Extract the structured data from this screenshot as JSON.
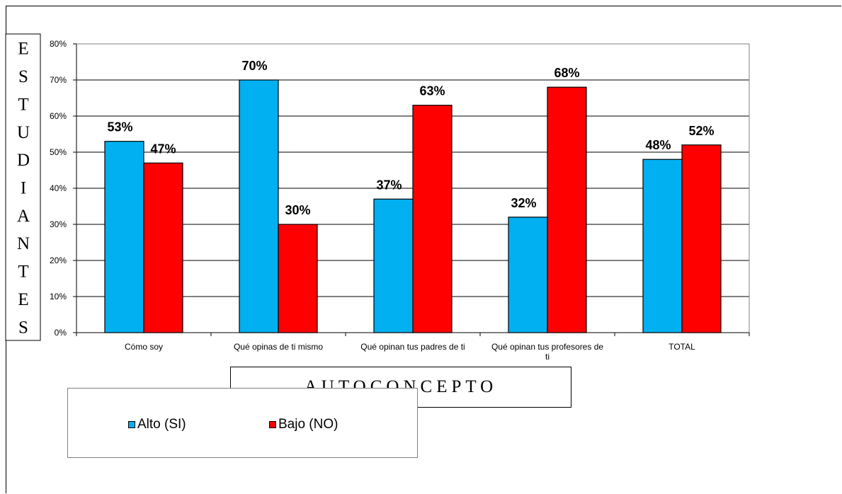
{
  "chart_data": {
    "type": "bar",
    "categories": [
      "Cómo soy",
      "Qué opinas de ti mismo",
      "Qué opinan tus padres de ti",
      "Qué opinan tus profesores de ti",
      "TOTAL"
    ],
    "series": [
      {
        "name": "Alto (SI)",
        "values": [
          53,
          70,
          37,
          32,
          48
        ],
        "color": "#00b0f0"
      },
      {
        "name": "Bajo (NO)",
        "values": [
          47,
          30,
          63,
          68,
          52
        ],
        "color": "#ff0000"
      }
    ],
    "data_labels": [
      [
        "53%",
        "70%",
        "37%",
        "32%",
        "48%"
      ],
      [
        "47%",
        "30%",
        "63%",
        "68%",
        "52%"
      ]
    ],
    "ylabel": "ESTUDIANTES",
    "xlabel": "AUTOCONCEPTO",
    "ylim": [
      0,
      80
    ],
    "y_ticks": [
      0,
      10,
      20,
      30,
      40,
      50,
      60,
      70,
      80
    ],
    "y_tick_labels": [
      "0%",
      "10%",
      "20%",
      "30%",
      "40%",
      "50%",
      "60%",
      "70%",
      "80%"
    ],
    "grid": true,
    "legend": "bottom-left"
  }
}
